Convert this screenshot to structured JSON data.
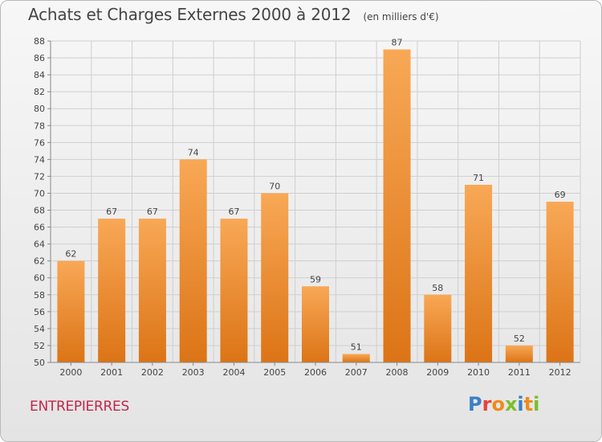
{
  "title": "Achats et Charges Externes 2000 à 2012",
  "subtitle": "(en milliers d'€)",
  "city": "ENTREPIERRES",
  "logo": {
    "text": "Proxiti",
    "colors": [
      "#3a7fc8",
      "#e8423a",
      "#f08a1c",
      "#7bbf2a",
      "#3a7fc8",
      "#f08a1c",
      "#7bbf2a"
    ]
  },
  "colors": {
    "bar_top": "#f8a856",
    "bar_bottom": "#dc7416",
    "axis": "#888888",
    "grid": "#cfcfcf",
    "text": "#444444"
  },
  "chart_data": {
    "type": "bar",
    "categories": [
      "2000",
      "2001",
      "2002",
      "2003",
      "2004",
      "2005",
      "2006",
      "2007",
      "2008",
      "2009",
      "2010",
      "2011",
      "2012"
    ],
    "values": [
      62,
      67,
      67,
      74,
      67,
      70,
      59,
      51,
      87,
      58,
      71,
      52,
      69
    ],
    "ylim": [
      50,
      88
    ],
    "yticks": [
      50,
      52,
      54,
      56,
      58,
      60,
      62,
      64,
      66,
      68,
      70,
      72,
      74,
      76,
      78,
      80,
      82,
      84,
      86,
      88
    ],
    "grid": true,
    "data_labels": true
  }
}
